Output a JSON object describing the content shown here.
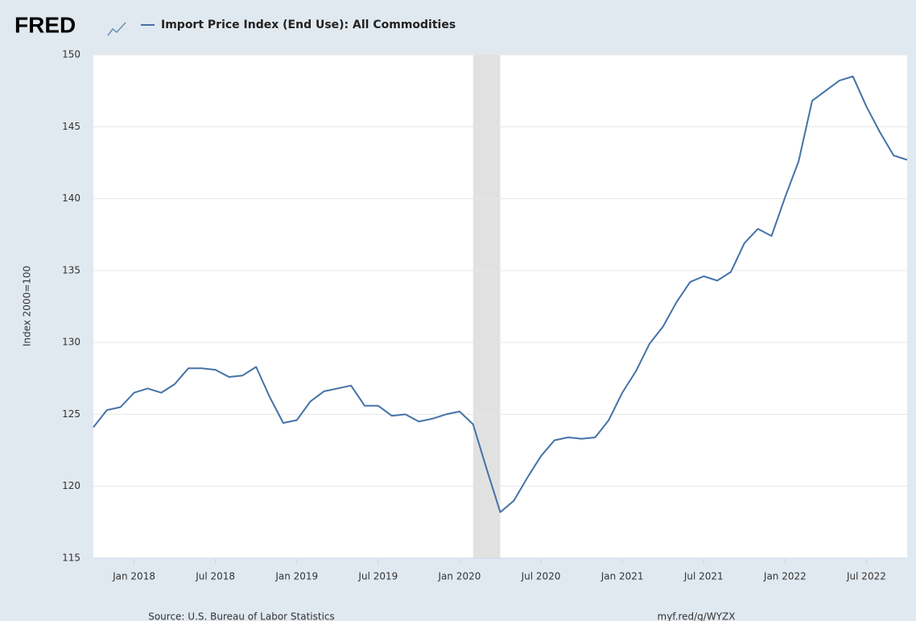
{
  "chart_data": {
    "type": "line",
    "logo": "FRED",
    "ylabel": "Index 2000=100",
    "source": "Source: U.S. Bureau of Labor Statistics",
    "link": "myf.red/g/WYZX",
    "x": [
      "2017-10",
      "2017-11",
      "2017-12",
      "2018-01",
      "2018-02",
      "2018-03",
      "2018-04",
      "2018-05",
      "2018-06",
      "2018-07",
      "2018-08",
      "2018-09",
      "2018-10",
      "2018-11",
      "2018-12",
      "2019-01",
      "2019-02",
      "2019-03",
      "2019-04",
      "2019-05",
      "2019-06",
      "2019-07",
      "2019-08",
      "2019-09",
      "2019-10",
      "2019-11",
      "2019-12",
      "2020-01",
      "2020-02",
      "2020-03",
      "2020-04",
      "2020-05",
      "2020-06",
      "2020-07",
      "2020-08",
      "2020-09",
      "2020-10",
      "2020-11",
      "2020-12",
      "2021-01",
      "2021-02",
      "2021-03",
      "2021-04",
      "2021-05",
      "2021-06",
      "2021-07",
      "2021-08",
      "2021-09",
      "2021-10",
      "2021-11",
      "2021-12",
      "2022-01",
      "2022-02",
      "2022-03",
      "2022-04",
      "2022-05",
      "2022-06",
      "2022-07",
      "2022-08",
      "2022-09",
      "2022-10"
    ],
    "series": [
      {
        "name": "Import Price Index (End Use): All Commodities",
        "color": "#4572a7",
        "values": [
          124.1,
          125.3,
          125.5,
          126.5,
          126.8,
          126.5,
          127.1,
          128.2,
          128.2,
          128.1,
          127.6,
          127.7,
          128.3,
          126.2,
          124.4,
          124.6,
          125.9,
          126.6,
          126.8,
          127.0,
          125.6,
          125.6,
          124.9,
          125.0,
          124.5,
          124.7,
          125.0,
          125.2,
          124.3,
          121.2,
          118.2,
          119.0,
          120.6,
          122.1,
          123.2,
          123.4,
          123.3,
          123.4,
          124.6,
          126.5,
          128.0,
          129.9,
          131.1,
          132.8,
          134.2,
          134.6,
          134.3,
          134.9,
          136.9,
          137.9,
          137.4,
          140.1,
          142.6,
          146.8,
          147.5,
          148.2,
          148.5,
          146.4,
          144.6,
          143.0,
          142.7
        ]
      }
    ],
    "xlim": [
      "2017-10",
      "2022-10"
    ],
    "xticks": [
      {
        "value": "2018-01",
        "label": "Jan 2018"
      },
      {
        "value": "2018-07",
        "label": "Jul 2018"
      },
      {
        "value": "2019-01",
        "label": "Jan 2019"
      },
      {
        "value": "2019-07",
        "label": "Jul 2019"
      },
      {
        "value": "2020-01",
        "label": "Jan 2020"
      },
      {
        "value": "2020-07",
        "label": "Jul 2020"
      },
      {
        "value": "2021-01",
        "label": "Jan 2021"
      },
      {
        "value": "2021-07",
        "label": "Jul 2021"
      },
      {
        "value": "2022-01",
        "label": "Jan 2022"
      },
      {
        "value": "2022-07",
        "label": "Jul 2022"
      }
    ],
    "ylim": [
      115,
      150
    ],
    "yticks": [
      115,
      120,
      125,
      130,
      135,
      140,
      145,
      150
    ],
    "grid": true,
    "recessions": [
      {
        "start": "2020-02",
        "end": "2020-04",
        "color": "#e1e1e1"
      }
    ]
  }
}
